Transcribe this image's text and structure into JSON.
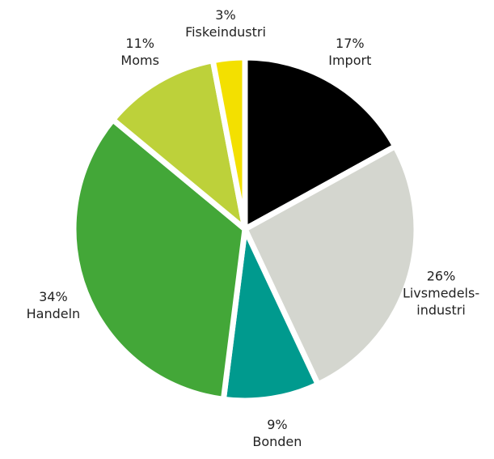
{
  "chart_data": {
    "type": "pie",
    "categories": [
      "Import",
      "Livsmedels-\nindustri",
      "Bonden",
      "Handeln",
      "Moms",
      "Fiskeindustri"
    ],
    "values": [
      17,
      26,
      9,
      34,
      11,
      3
    ],
    "value_labels": [
      "17%",
      "26%",
      "9%",
      "34%",
      "11%",
      "3%"
    ],
    "colors": [
      "#000000",
      "#d4d6cf",
      "#009a8e",
      "#43a738",
      "#bdd13a",
      "#f3e000"
    ]
  }
}
